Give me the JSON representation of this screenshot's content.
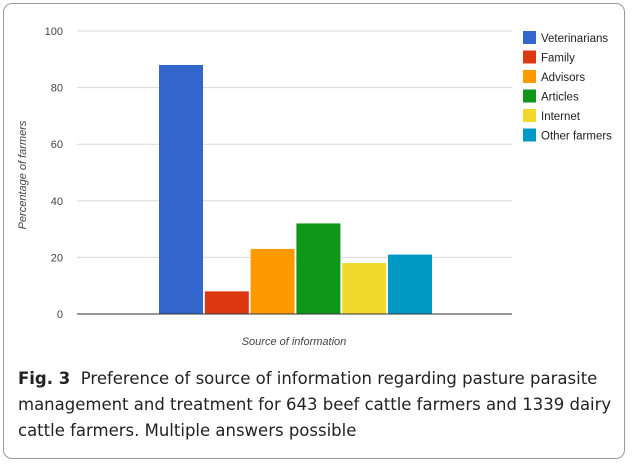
{
  "colors": {
    "Veterinarians": "#3366cc",
    "Family": "#dc3912",
    "Advisors": "#ff9900",
    "Articles": "#109618",
    "Internet": "#f2d82b",
    "Other farmers": "#0099c6",
    "gridline": "#d9d9d9",
    "axis": "#333333"
  },
  "chart_data": {
    "type": "bar",
    "title": "",
    "xlabel": "Source of information",
    "ylabel": "Percentage of farmers",
    "ylim": [
      0,
      100
    ],
    "yticks": [
      0,
      20,
      40,
      60,
      80,
      100
    ],
    "categories": [
      ""
    ],
    "series": [
      {
        "name": "Veterinarians",
        "values": [
          88
        ]
      },
      {
        "name": "Family",
        "values": [
          8
        ]
      },
      {
        "name": "Advisors",
        "values": [
          23
        ]
      },
      {
        "name": "Articles",
        "values": [
          32
        ]
      },
      {
        "name": "Internet",
        "values": [
          18
        ]
      },
      {
        "name": "Other farmers",
        "values": [
          21
        ]
      }
    ],
    "grid": true,
    "legend": "right"
  },
  "caption": {
    "label": "Fig. 3",
    "text": "Preference of source of information regarding pasture parasite management and treatment for 643 beef cattle farmers and 1339 dairy cattle farmers. Multiple answers possible"
  }
}
